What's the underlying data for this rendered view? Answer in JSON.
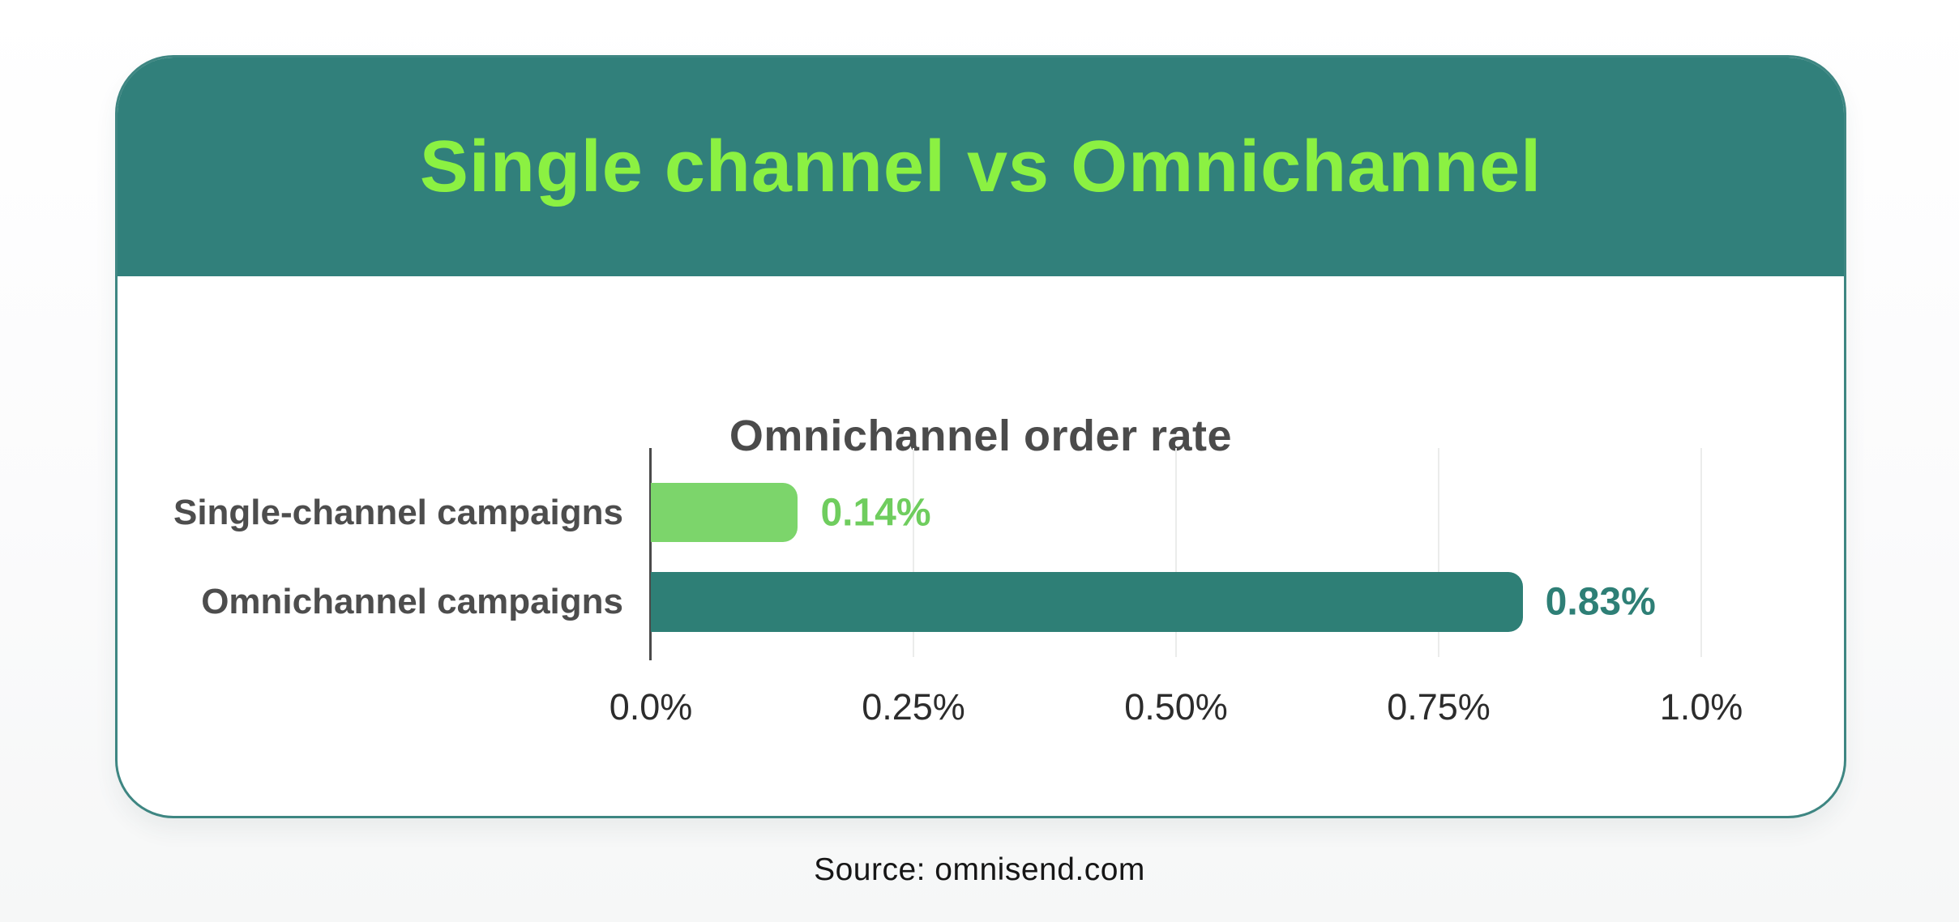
{
  "header": {
    "title": "Single channel vs Omnichannel",
    "bg_color": "#31807b",
    "title_color": "#8bf142"
  },
  "chart": {
    "title": "Omnichannel order rate"
  },
  "chart_data": {
    "type": "bar",
    "orientation": "horizontal",
    "title": "Omnichannel order rate",
    "categories": [
      "Single-channel campaigns",
      "Omnichannel campaigns"
    ],
    "values": [
      0.14,
      0.83
    ],
    "value_labels": [
      "0.14%",
      "0.83%"
    ],
    "bar_colors": [
      "#7cd56b",
      "#2e7f76"
    ],
    "value_label_colors": [
      "#6fcd5e",
      "#2e7f76"
    ],
    "xlabel": "",
    "ylabel": "",
    "xlim": [
      0,
      1.0
    ],
    "x_ticks": [
      {
        "value": 0.0,
        "label": "0.0%"
      },
      {
        "value": 0.25,
        "label": "0.25%"
      },
      {
        "value": 0.5,
        "label": "0.50%"
      },
      {
        "value": 0.75,
        "label": "0.75%"
      },
      {
        "value": 1.0,
        "label": "1.0%"
      }
    ],
    "grid": "vertical lines at ticks",
    "legend": "none"
  },
  "footer": {
    "source": "Source: omnisend.com"
  }
}
